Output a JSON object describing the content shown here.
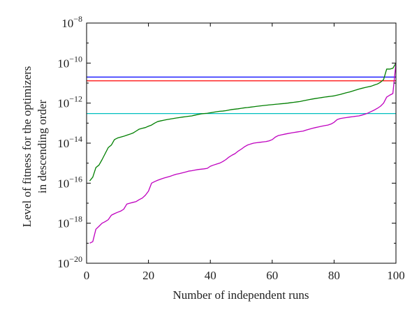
{
  "chart_data": {
    "type": "line",
    "title": "",
    "xlabel": "Number of independent runs",
    "ylabel_lines": [
      "Level of fitness for the optimizers",
      "in descending order"
    ],
    "xlim": [
      0,
      100
    ],
    "ylim": [
      1e-20,
      1e-08
    ],
    "yscale": "log",
    "grid": false,
    "x_ticks": [
      0,
      20,
      40,
      60,
      80,
      100
    ],
    "y_ticks": [
      -20,
      -18,
      -16,
      -14,
      -12,
      -10,
      -8
    ],
    "series": [
      {
        "color": "#0000ff",
        "x": [
          0,
          100
        ],
        "y": [
          2e-11,
          2e-11
        ]
      },
      {
        "color": "#ff0000",
        "x": [
          0,
          100
        ],
        "y": [
          1.3e-11,
          1.3e-11
        ]
      },
      {
        "color": "#00bfbf",
        "x": [
          0,
          100
        ],
        "y": [
          3e-13,
          3e-13
        ]
      },
      {
        "color": "#007f00",
        "x": [
          1,
          2,
          3,
          4,
          5,
          6,
          7,
          8,
          9,
          10,
          11,
          12,
          13,
          14,
          15,
          16,
          17,
          18,
          19,
          20,
          21,
          22,
          23,
          24,
          25,
          26,
          27,
          28,
          29,
          30,
          31,
          32,
          33,
          34,
          35,
          36,
          37,
          38,
          39,
          40,
          41,
          42,
          43,
          44,
          45,
          46,
          47,
          48,
          49,
          50,
          51,
          52,
          53,
          54,
          55,
          56,
          57,
          58,
          59,
          60,
          61,
          62,
          63,
          64,
          65,
          66,
          67,
          68,
          69,
          70,
          71,
          72,
          73,
          74,
          75,
          76,
          77,
          78,
          79,
          80,
          81,
          82,
          83,
          84,
          85,
          86,
          87,
          88,
          89,
          90,
          91,
          92,
          93,
          94,
          95,
          96,
          97,
          98,
          99,
          100
        ],
        "y": [
          1.3e-16,
          2e-16,
          6e-16,
          8e-16,
          1.5e-15,
          3e-15,
          6e-15,
          8e-15,
          1.5e-14,
          1.8e-14,
          2e-14,
          2.2e-14,
          2.5e-14,
          2.8e-14,
          3.2e-14,
          4e-14,
          5e-14,
          5.5e-14,
          6e-14,
          7e-14,
          8e-14,
          1e-13,
          1.2e-13,
          1.3e-13,
          1.4e-13,
          1.5e-13,
          1.6e-13,
          1.7e-13,
          1.8e-13,
          1.9e-13,
          2e-13,
          2.1e-13,
          2.2e-13,
          2.3e-13,
          2.5e-13,
          2.7e-13,
          2.9e-13,
          3e-13,
          3.1e-13,
          3.3e-13,
          3.5e-13,
          3.7e-13,
          3.9e-13,
          4e-13,
          4.2e-13,
          4.5e-13,
          4.8e-13,
          5e-13,
          5.2e-13,
          5.5e-13,
          5.8e-13,
          6e-13,
          6.3e-13,
          6.6e-13,
          6.9e-13,
          7.2e-13,
          7.5e-13,
          7.8e-13,
          8.1e-13,
          8.4e-13,
          8.7e-13,
          9e-13,
          9.3e-13,
          9.6e-13,
          1e-12,
          1.05e-12,
          1.1e-12,
          1.15e-12,
          1.2e-12,
          1.3e-12,
          1.4e-12,
          1.5e-12,
          1.6e-12,
          1.7e-12,
          1.8e-12,
          1.9e-12,
          2e-12,
          2.1e-12,
          2.2e-12,
          2.3e-12,
          2.5e-12,
          2.7e-12,
          3e-12,
          3.3e-12,
          3.6e-12,
          4e-12,
          4.5e-12,
          5e-12,
          5.5e-12,
          6e-12,
          6.5e-12,
          7e-12,
          8e-12,
          9e-12,
          1.1e-11,
          1.5e-11,
          5e-11,
          5e-11,
          5.5e-11,
          1e-10
        ]
      },
      {
        "color": "#bf00bf",
        "x": [
          1,
          2,
          3,
          4,
          5,
          6,
          7,
          8,
          9,
          10,
          11,
          12,
          13,
          14,
          15,
          16,
          17,
          18,
          19,
          20,
          21,
          22,
          23,
          24,
          25,
          26,
          27,
          28,
          29,
          30,
          31,
          32,
          33,
          34,
          35,
          36,
          37,
          38,
          39,
          40,
          41,
          42,
          43,
          44,
          45,
          46,
          47,
          48,
          49,
          50,
          51,
          52,
          53,
          54,
          55,
          56,
          57,
          58,
          59,
          60,
          61,
          62,
          63,
          64,
          65,
          66,
          67,
          68,
          69,
          70,
          71,
          72,
          73,
          74,
          75,
          76,
          77,
          78,
          79,
          80,
          81,
          82,
          83,
          84,
          85,
          86,
          87,
          88,
          89,
          90,
          91,
          92,
          93,
          94,
          95,
          96,
          97,
          98,
          99,
          100
        ],
        "y": [
          1e-19,
          1.2e-19,
          5e-19,
          7e-19,
          1e-18,
          1.2e-18,
          1.5e-18,
          2.5e-18,
          3e-18,
          3.5e-18,
          4e-18,
          5e-18,
          9e-18,
          1e-17,
          1.1e-17,
          1.2e-17,
          1.5e-17,
          1.8e-17,
          2.5e-17,
          4e-17,
          1e-16,
          1.2e-16,
          1.4e-16,
          1.6e-16,
          1.8e-16,
          2e-16,
          2.2e-16,
          2.5e-16,
          2.8e-16,
          3e-16,
          3.3e-16,
          3.6e-16,
          4e-16,
          4.2e-16,
          4.5e-16,
          4.8e-16,
          5e-16,
          5.2e-16,
          5.5e-16,
          7e-16,
          8e-16,
          9e-16,
          1e-15,
          1.2e-15,
          1.5e-15,
          2e-15,
          2.5e-15,
          3e-15,
          4e-15,
          5e-15,
          6.5e-15,
          8e-15,
          9e-15,
          1e-14,
          1.05e-14,
          1.1e-14,
          1.15e-14,
          1.2e-14,
          1.3e-14,
          1.5e-14,
          2e-14,
          2.4e-14,
          2.6e-14,
          2.8e-14,
          3e-14,
          3.2e-14,
          3.4e-14,
          3.6e-14,
          3.8e-14,
          4e-14,
          4.5e-14,
          5e-14,
          5.5e-14,
          6e-14,
          6.5e-14,
          7e-14,
          7.5e-14,
          8e-14,
          9e-14,
          1.1e-13,
          1.5e-13,
          1.7e-13,
          1.8e-13,
          1.9e-13,
          2e-13,
          2.1e-13,
          2.2e-13,
          2.3e-13,
          2.5e-13,
          2.8e-13,
          3.2e-13,
          3.8e-13,
          4.5e-13,
          5.5e-13,
          7e-13,
          1e-12,
          2e-12,
          2.5e-12,
          3e-12,
          1e-10
        ]
      }
    ]
  }
}
